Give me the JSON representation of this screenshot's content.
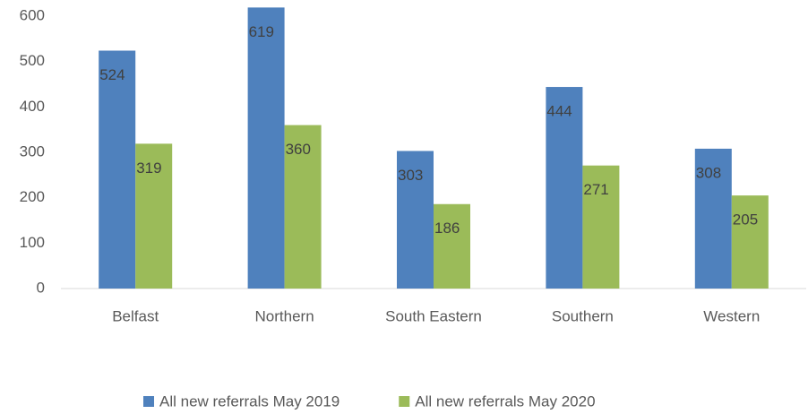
{
  "chart_data": {
    "type": "bar",
    "categories": [
      "Belfast",
      "Northern",
      "South Eastern",
      "Southern",
      "Western"
    ],
    "series": [
      {
        "name": "All new referrals May 2019",
        "color": "#4f81bd",
        "values": [
          524,
          619,
          303,
          444,
          308
        ]
      },
      {
        "name": "All new referrals May 2020",
        "color": "#9bbb59",
        "values": [
          319,
          360,
          186,
          271,
          205
        ]
      }
    ],
    "ylim": [
      0,
      600
    ],
    "yticks": [
      0,
      100,
      200,
      300,
      400,
      500,
      600
    ],
    "grid": false,
    "legend": "bottom"
  }
}
